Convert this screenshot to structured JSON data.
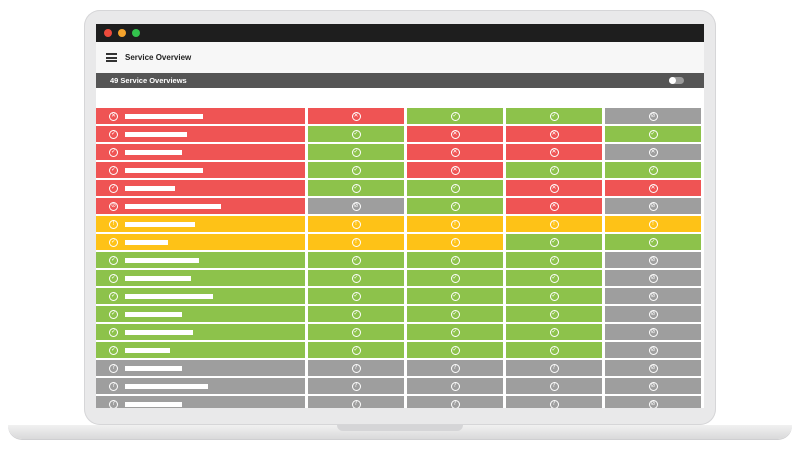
{
  "app": {
    "title": "Service Overview"
  },
  "section": {
    "title": "49 Service Overviews"
  },
  "window_dots": [
    "#ee4b3c",
    "#f4a32c",
    "#33c24d"
  ],
  "colors": {
    "red": "#ef5454",
    "green": "#8dc24b",
    "gray": "#9e9e9e",
    "yellow": "#fec217"
  },
  "icon_glyphs": {
    "check": "✓",
    "error": "✕",
    "warning": "!",
    "unknown": "?",
    "disabled": "⊘"
  },
  "rows": [
    {
      "name_width": 78,
      "cells": [
        [
          "red",
          "error"
        ],
        [
          "red",
          "error"
        ],
        [
          "green",
          "check"
        ],
        [
          "green",
          "check"
        ],
        [
          "gray",
          "disabled"
        ]
      ]
    },
    {
      "name_width": 62,
      "cells": [
        [
          "red",
          "check"
        ],
        [
          "green",
          "check"
        ],
        [
          "red",
          "error"
        ],
        [
          "red",
          "error"
        ],
        [
          "green",
          "check"
        ]
      ]
    },
    {
      "name_width": 57,
      "cells": [
        [
          "red",
          "check"
        ],
        [
          "green",
          "check"
        ],
        [
          "red",
          "error"
        ],
        [
          "red",
          "error"
        ],
        [
          "gray",
          "error"
        ]
      ]
    },
    {
      "name_width": 78,
      "cells": [
        [
          "red",
          "check"
        ],
        [
          "green",
          "check"
        ],
        [
          "red",
          "error"
        ],
        [
          "green",
          "check"
        ],
        [
          "green",
          "check"
        ]
      ]
    },
    {
      "name_width": 50,
      "cells": [
        [
          "red",
          "check"
        ],
        [
          "green",
          "check"
        ],
        [
          "green",
          "check"
        ],
        [
          "red",
          "error"
        ],
        [
          "red",
          "error"
        ]
      ]
    },
    {
      "name_width": 96,
      "cells": [
        [
          "red",
          "disabled"
        ],
        [
          "gray",
          "disabled"
        ],
        [
          "green",
          "check"
        ],
        [
          "red",
          "error"
        ],
        [
          "gray",
          "disabled"
        ]
      ]
    },
    {
      "name_width": 70,
      "cells": [
        [
          "yellow",
          "warning"
        ],
        [
          "yellow",
          "warning"
        ],
        [
          "yellow",
          "warning"
        ],
        [
          "yellow",
          "warning"
        ],
        [
          "yellow",
          "warning"
        ]
      ]
    },
    {
      "name_width": 43,
      "cells": [
        [
          "yellow",
          "check"
        ],
        [
          "yellow",
          "warning"
        ],
        [
          "yellow",
          "warning"
        ],
        [
          "green",
          "check"
        ],
        [
          "green",
          "check"
        ]
      ]
    },
    {
      "name_width": 74,
      "cells": [
        [
          "green",
          "check"
        ],
        [
          "green",
          "check"
        ],
        [
          "green",
          "check"
        ],
        [
          "green",
          "check"
        ],
        [
          "gray",
          "disabled"
        ]
      ]
    },
    {
      "name_width": 66,
      "cells": [
        [
          "green",
          "check"
        ],
        [
          "green",
          "check"
        ],
        [
          "green",
          "check"
        ],
        [
          "green",
          "check"
        ],
        [
          "gray",
          "disabled"
        ]
      ]
    },
    {
      "name_width": 88,
      "cells": [
        [
          "green",
          "check"
        ],
        [
          "green",
          "check"
        ],
        [
          "green",
          "check"
        ],
        [
          "green",
          "check"
        ],
        [
          "gray",
          "disabled"
        ]
      ]
    },
    {
      "name_width": 57,
      "cells": [
        [
          "green",
          "check"
        ],
        [
          "green",
          "check"
        ],
        [
          "green",
          "check"
        ],
        [
          "green",
          "check"
        ],
        [
          "gray",
          "disabled"
        ]
      ]
    },
    {
      "name_width": 68,
      "cells": [
        [
          "green",
          "check"
        ],
        [
          "green",
          "check"
        ],
        [
          "green",
          "check"
        ],
        [
          "green",
          "check"
        ],
        [
          "gray",
          "disabled"
        ]
      ]
    },
    {
      "name_width": 45,
      "cells": [
        [
          "green",
          "check"
        ],
        [
          "green",
          "check"
        ],
        [
          "green",
          "check"
        ],
        [
          "green",
          "check"
        ],
        [
          "gray",
          "disabled"
        ]
      ]
    },
    {
      "name_width": 57,
      "cells": [
        [
          "gray",
          "unknown"
        ],
        [
          "gray",
          "unknown"
        ],
        [
          "gray",
          "unknown"
        ],
        [
          "gray",
          "unknown"
        ],
        [
          "gray",
          "disabled"
        ]
      ]
    },
    {
      "name_width": 83,
      "cells": [
        [
          "gray",
          "unknown"
        ],
        [
          "gray",
          "unknown"
        ],
        [
          "gray",
          "unknown"
        ],
        [
          "gray",
          "unknown"
        ],
        [
          "gray",
          "disabled"
        ]
      ]
    },
    {
      "name_width": 57,
      "cells": [
        [
          "gray",
          "unknown"
        ],
        [
          "gray",
          "unknown"
        ],
        [
          "gray",
          "unknown"
        ],
        [
          "gray",
          "unknown"
        ],
        [
          "gray",
          "disabled"
        ]
      ]
    }
  ]
}
